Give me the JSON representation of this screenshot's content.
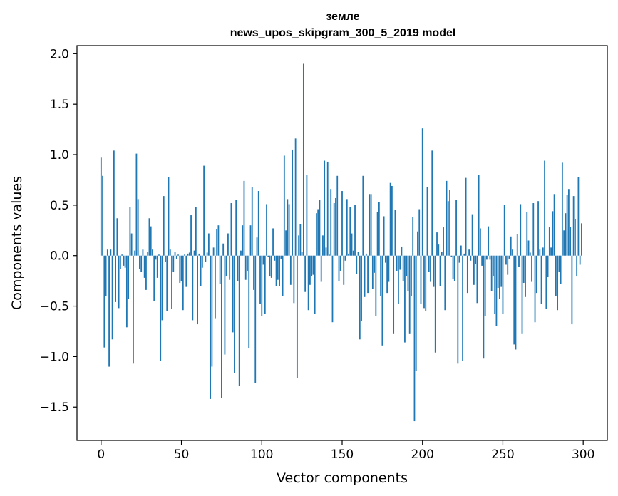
{
  "chart_data": {
    "type": "bar",
    "title": "земле",
    "subtitle": "news_upos_skipgram_300_5_2019 model",
    "xlabel": "Vector components",
    "ylabel": "Components values",
    "xlim": [
      -15,
      315
    ],
    "ylim": [
      -1.83,
      2.08
    ],
    "xticks": [
      0,
      50,
      100,
      150,
      200,
      250,
      300
    ],
    "xtick_labels": [
      "0",
      "50",
      "100",
      "150",
      "200",
      "250",
      "300"
    ],
    "yticks": [
      -1.5,
      -1.0,
      -0.5,
      0.0,
      0.5,
      1.0,
      1.5,
      2.0
    ],
    "ytick_labels": [
      "−1.5",
      "−1.0",
      "−0.5",
      "0.0",
      "0.5",
      "1.0",
      "1.5",
      "2.0"
    ],
    "bar_color": "#1f77b4",
    "grid": false,
    "series": [
      {
        "values": [
          0.97,
          0.79,
          -0.91,
          -0.4,
          0.06,
          -1.1,
          0.06,
          -0.83,
          1.04,
          -0.46,
          0.37,
          -0.52,
          -0.13,
          0.01,
          -0.1,
          -0.12,
          -0.71,
          -0.43,
          0.48,
          0.22,
          -1.07,
          0.05,
          1.01,
          0.56,
          -0.13,
          -0.16,
          0.06,
          -0.22,
          -0.34,
          0.04,
          0.37,
          0.29,
          0.06,
          -0.45,
          -0.04,
          -0.22,
          0.01,
          -1.04,
          -0.64,
          0.59,
          -0.06,
          -0.55,
          0.78,
          0.06,
          -0.53,
          -0.16,
          0.04,
          -0.03,
          0.01,
          -0.27,
          -0.25,
          -0.54,
          0.01,
          -0.31,
          0.02,
          0.03,
          0.4,
          -0.64,
          0.05,
          0.48,
          -0.68,
          0.02,
          -0.3,
          -0.12,
          0.89,
          -0.06,
          0.03,
          0.22,
          -1.42,
          -1.1,
          0.08,
          -0.62,
          0.26,
          0.3,
          -0.28,
          -1.41,
          0.12,
          -0.98,
          -0.2,
          0.22,
          -0.24,
          0.52,
          -0.76,
          -1.16,
          0.55,
          -0.25,
          -1.29,
          0.05,
          0.3,
          0.74,
          -0.24,
          -0.15,
          -0.92,
          0.3,
          0.68,
          -0.34,
          -1.26,
          0.18,
          0.64,
          -0.48,
          -0.6,
          -0.09,
          -0.58,
          0.51,
          -0.01,
          -0.2,
          -0.22,
          0.27,
          -0.05,
          -0.3,
          -0.24,
          -0.3,
          -0.03,
          -0.4,
          0.99,
          0.25,
          0.56,
          0.51,
          -0.29,
          1.05,
          -0.47,
          1.16,
          -1.21,
          0.2,
          0.31,
          0.04,
          1.9,
          -0.36,
          0.8,
          -0.54,
          -0.29,
          -0.2,
          -0.19,
          -0.58,
          0.42,
          0.46,
          0.55,
          -0.26,
          0.2,
          0.94,
          0.08,
          0.93,
          0.01,
          0.66,
          -0.66,
          0.52,
          0.57,
          0.79,
          -0.25,
          -0.15,
          0.64,
          -0.29,
          -0.05,
          0.56,
          0.02,
          0.48,
          0.22,
          0.05,
          0.5,
          -0.18,
          0.04,
          -0.83,
          -0.65,
          0.79,
          -0.41,
          0.02,
          -0.37,
          0.61,
          0.61,
          -0.33,
          -0.17,
          -0.6,
          0.43,
          0.53,
          -0.4,
          -0.89,
          0.39,
          -0.07,
          -0.37,
          -0.26,
          0.72,
          0.69,
          -0.77,
          0.45,
          -0.15,
          -0.48,
          -0.14,
          0.09,
          -0.25,
          -0.86,
          -0.2,
          -0.35,
          -0.77,
          -0.4,
          0.38,
          -1.64,
          -1.14,
          0.24,
          0.46,
          -0.48,
          1.26,
          -0.52,
          -0.55,
          0.68,
          -0.16,
          -0.26,
          1.04,
          -0.31,
          -0.96,
          0.23,
          0.11,
          -0.3,
          0.04,
          0.28,
          -0.54,
          0.74,
          0.54,
          0.65,
          -0.01,
          -0.23,
          -0.25,
          0.55,
          -1.07,
          -0.07,
          0.1,
          -1.04,
          0.02,
          0.77,
          -0.37,
          0.06,
          -0.05,
          0.41,
          -0.29,
          -0.08,
          -0.47,
          0.8,
          0.27,
          -0.1,
          -1.02,
          -0.6,
          -0.04,
          0.29,
          -0.04,
          -0.35,
          -0.2,
          -0.58,
          -0.7,
          -0.32,
          -0.43,
          -0.31,
          -0.58,
          0.5,
          -0.09,
          -0.19,
          -0.03,
          0.19,
          0.06,
          -0.88,
          -0.93,
          0.21,
          -0.11,
          0.51,
          -0.77,
          -0.27,
          -0.41,
          0.43,
          0.15,
          0.03,
          -0.26,
          0.52,
          -0.66,
          -0.37,
          0.54,
          0.06,
          -0.48,
          0.08,
          0.94,
          -0.53,
          -0.21,
          0.28,
          0.08,
          0.44,
          0.61,
          -0.4,
          -0.54,
          -0.16,
          -0.28,
          0.92,
          0.25,
          0.42,
          0.6,
          0.66,
          0.28,
          -0.68,
          0.59,
          0.36,
          -0.2,
          0.78,
          -0.09,
          0.32
        ]
      }
    ]
  }
}
